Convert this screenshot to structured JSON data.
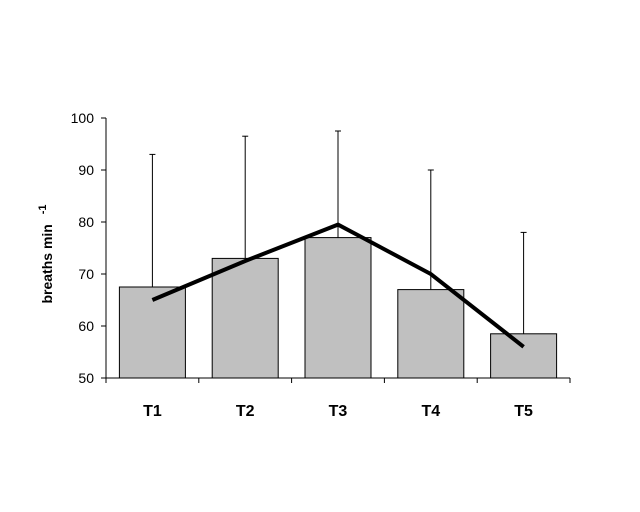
{
  "chart_data": {
    "type": "bar",
    "title": "",
    "xlabel": "",
    "ylabel": "breaths min",
    "ylabel_superscript": "-1",
    "categories": [
      "T1",
      "T2",
      "T3",
      "T4",
      "T5"
    ],
    "series": [
      {
        "type": "bar",
        "values": [
          67.5,
          73,
          77,
          67,
          58.5
        ],
        "error_upper": [
          93,
          96.5,
          97.5,
          90,
          78
        ],
        "color": "#c0c0c0"
      },
      {
        "type": "line",
        "values": [
          65,
          72.5,
          79.5,
          70,
          56
        ],
        "color": "#000000"
      }
    ],
    "ylim": [
      50,
      100
    ],
    "yticks": [
      50,
      60,
      70,
      80,
      90,
      100
    ],
    "grid": false,
    "legend": "none"
  }
}
